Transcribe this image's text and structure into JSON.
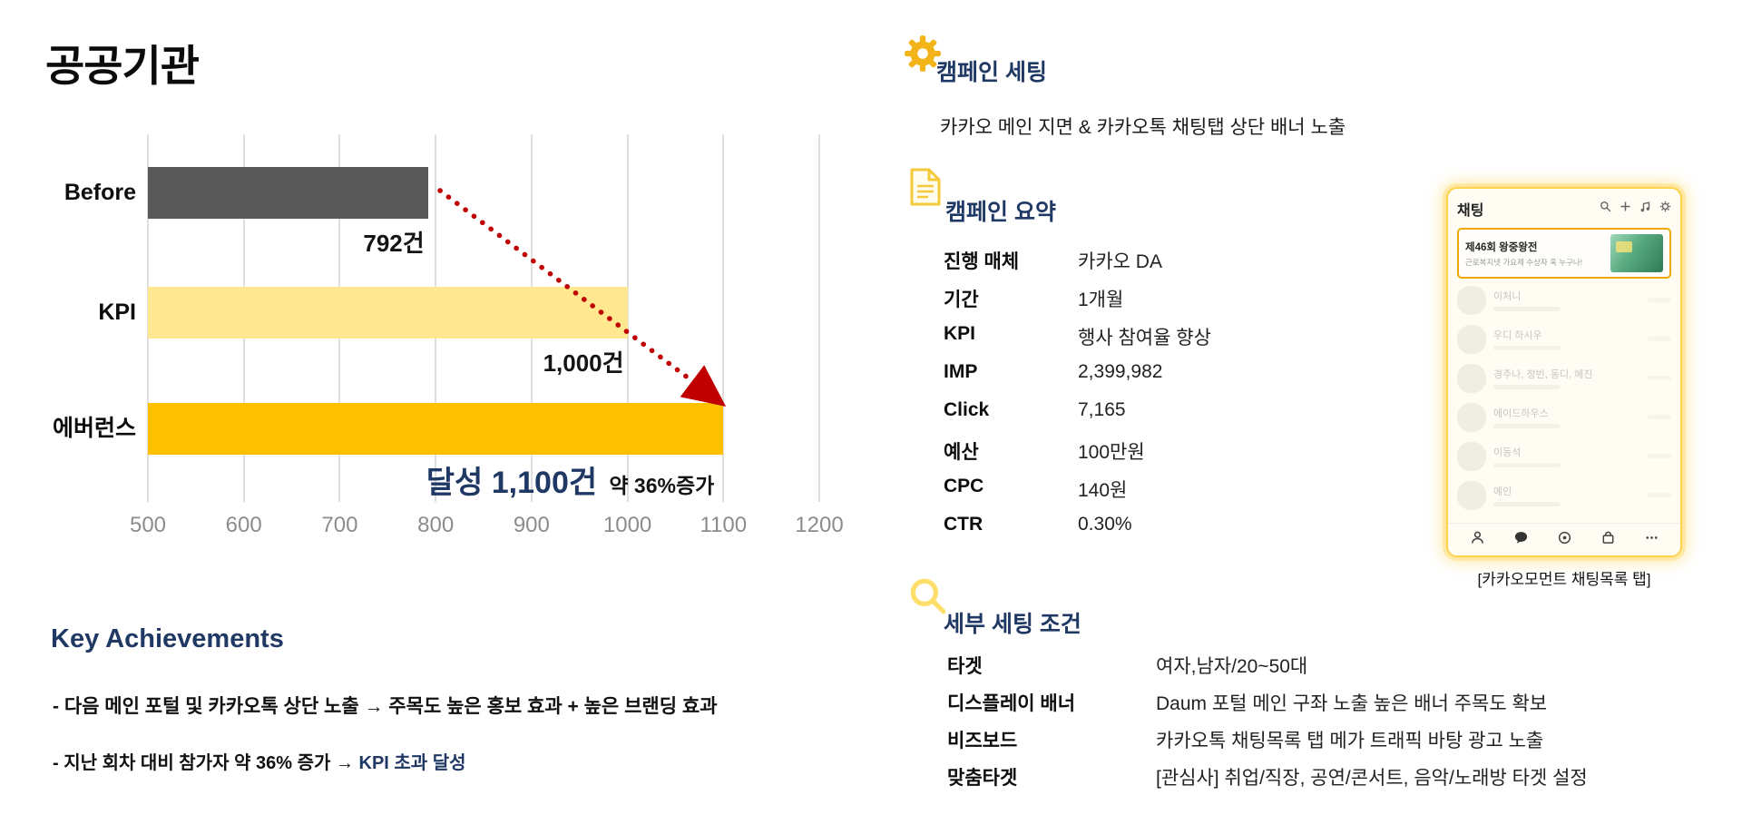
{
  "page": {
    "title": "공공기관"
  },
  "chart_data": {
    "type": "bar",
    "orientation": "horizontal",
    "title": "",
    "categories": [
      "Before",
      "KPI",
      "에버런스"
    ],
    "values": [
      792,
      1000,
      1100
    ],
    "value_labels": [
      "792건",
      "1,000건"
    ],
    "result_label": "달성 1,100건",
    "result_annotation": "약 36%증가",
    "bar_colors": [
      "#595959",
      "#ffe88f",
      "#ffc000"
    ],
    "xlim": [
      500,
      1200
    ],
    "x_ticks": [
      500,
      600,
      700,
      800,
      900,
      1000,
      1100,
      1200
    ],
    "grid": true,
    "legend": "none",
    "arrow_color": "#c00000"
  },
  "key_achievements": {
    "title": "Key Achievements",
    "bullet1": "-  다음 메인 포털 및 카카오톡 상단 노출 →  주목도 높은 홍보 효과 + 높은 브랜딩 효과",
    "bullet2_main": "-  지난 회차 대비 참가자 약 36% 증가 →  ",
    "bullet2_highlight": "KPI 초과 달성"
  },
  "campaign_setting": {
    "heading": "캠페인 세팅",
    "description": "카카오 메인 지면 & 카카오톡 채팅탭 상단 배너 노출"
  },
  "campaign_summary": {
    "heading": "캠페인 요약",
    "rows": [
      {
        "label": "진행 매체",
        "value": "카카오 DA"
      },
      {
        "label": "기간",
        "value": "1개월"
      },
      {
        "label": "KPI",
        "value": "행사 참여율 향상"
      },
      {
        "label": "IMP",
        "value": "2,399,982"
      },
      {
        "label": "Click",
        "value": "7,165"
      },
      {
        "label": "예산",
        "value": "100만원"
      },
      {
        "label": "CPC",
        "value": "140원"
      },
      {
        "label": "CTR",
        "value": "0.30%"
      }
    ]
  },
  "detail_settings": {
    "heading": "세부 세팅 조건",
    "rows": [
      {
        "label": "타겟",
        "value": "여자,남자/20~50대"
      },
      {
        "label": "디스플레이 배너",
        "value": "Daum 포털 메인 구좌 노출 높은 배너 주목도 확보"
      },
      {
        "label": "비즈보드",
        "value": "카카오톡 채팅목록 탭 메가 트래픽 바탕 광고 노출"
      },
      {
        "label": "맞춤타겟",
        "value": "[관심사] 취업/직장, 공연/콘서트, 음악/노래방 타겟 설정"
      }
    ]
  },
  "phone": {
    "header_title": "채팅",
    "banner_title": "제46회 왕중왕전",
    "banner_subtitle": "근로복지넷 가요제 수상자 혹 누구나!",
    "chats": [
      "이처니",
      "우디 하시우",
      "경주나, 정빈, 동디, 혜진",
      "에이드하우스",
      "이동석",
      "예인"
    ],
    "caption": "[카카오모먼트 채팅목록 탭]"
  },
  "colors": {
    "navy": "#1f3864",
    "gold": "#ffc000",
    "light_yellow": "#ffe88f",
    "dark_gray_bar": "#595959",
    "arrow_red": "#c00000",
    "gridline": "#dedede"
  }
}
